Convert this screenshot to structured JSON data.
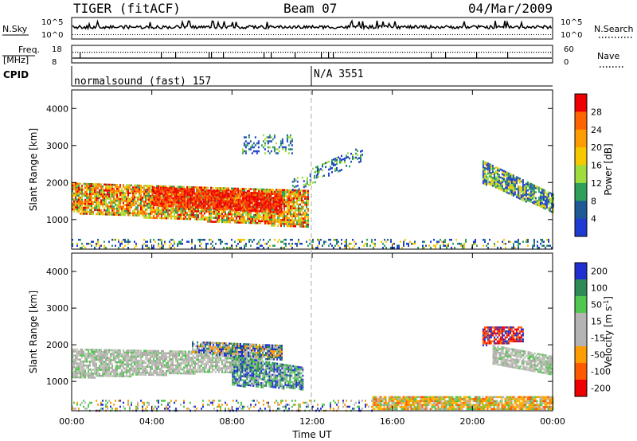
{
  "header": {
    "radar_label": "TIGER (fitACF)",
    "beam_label": "Beam 07",
    "date_label": "04/Mar/2009"
  },
  "strip": {
    "nsky_label": "N.Sky",
    "nsky_ticks": [
      "10^5",
      "10^0"
    ],
    "nsearch_label": "N.Search",
    "nsearch_ticks": [
      "10^5",
      "10^0"
    ],
    "freq_label_1": "Freq.",
    "freq_label_2": "[MHz]",
    "freq_ticks": [
      "18",
      "8"
    ],
    "nave_label": "Nave",
    "nave_ticks": [
      "60",
      "0"
    ],
    "cpid_label": "CPID",
    "cpid_mode_1": "normalsound (fast) 157",
    "cpid_mode_2": "N/A 3551"
  },
  "chart_data": [
    {
      "type": "heatmap",
      "parameter": "power",
      "ylabel": "Slant Range [km]",
      "xlabel": "",
      "ylim_km": [
        200,
        4500
      ],
      "xlim_hours": [
        0,
        24
      ],
      "x_ticks": [
        "00:00",
        "04:00",
        "08:00",
        "12:00",
        "16:00",
        "20:00",
        "00:00"
      ],
      "y_ticks": [
        "1000",
        "2000",
        "3000",
        "4000"
      ],
      "colorbar": {
        "label": "Power [dB]",
        "ticks": [
          "28",
          "24",
          "20",
          "16",
          "12",
          "8",
          "4"
        ],
        "colors": [
          "#ee0000",
          "#ff6400",
          "#ff9c00",
          "#f5c800",
          "#a0dc3c",
          "#2ea05a",
          "#1f5a96",
          "#1e3cd2"
        ]
      },
      "scatter_regions": [
        {
          "t0": 0.0,
          "t1": 11.8,
          "r0_start": 1200,
          "r1_start": 2000,
          "r0_end": 800,
          "r1_end": 1800,
          "level": "high"
        },
        {
          "t0": 4.0,
          "t1": 10.5,
          "r0_start": 1400,
          "r1_start": 1900,
          "r0_end": 1200,
          "r1_end": 1700,
          "level": "peak"
        },
        {
          "t0": 11.0,
          "t1": 12.3,
          "r0_start": 1800,
          "r1_start": 2100,
          "r0_end": 2000,
          "r1_end": 2400,
          "level": "low"
        },
        {
          "t0": 12.0,
          "t1": 14.5,
          "r0_start": 2000,
          "r1_start": 2400,
          "r0_end": 2600,
          "r1_end": 3000,
          "level": "low"
        },
        {
          "t0": 8.5,
          "t1": 11.0,
          "r0_start": 2800,
          "r1_start": 3300,
          "r0_end": 2800,
          "r1_end": 3300,
          "level": "low"
        },
        {
          "t0": 20.5,
          "t1": 24.0,
          "r0_start": 2000,
          "r1_start": 2600,
          "r0_end": 1200,
          "r1_end": 1700,
          "level": "mid"
        },
        {
          "t0": 0.0,
          "t1": 24.0,
          "r0_start": 220,
          "r1_start": 480,
          "r0_end": 220,
          "r1_end": 480,
          "level": "noise"
        }
      ]
    },
    {
      "type": "heatmap",
      "parameter": "velocity",
      "ylabel": "Slant Range [km]",
      "xlabel": "Time UT",
      "ylim_km": [
        200,
        4500
      ],
      "xlim_hours": [
        0,
        24
      ],
      "x_ticks": [
        "00:00",
        "04:00",
        "08:00",
        "12:00",
        "16:00",
        "20:00",
        "00:00"
      ],
      "y_ticks": [
        "1000",
        "2000",
        "3000",
        "4000"
      ],
      "colorbar": {
        "label": "Velocity [m s^-1]",
        "ticks": [
          "200",
          "100",
          "50",
          "15",
          "-15",
          "-50",
          "-100",
          "-200"
        ],
        "colors": [
          "#2030d0",
          "#2e8b57",
          "#50c850",
          "#b4b4b4",
          "#b4b4b4",
          "#ff9c00",
          "#ff5a00",
          "#ee0000"
        ]
      },
      "scatter_regions": [
        {
          "t0": 0.0,
          "t1": 9.5,
          "r0_start": 1100,
          "r1_start": 1900,
          "r0_end": 1300,
          "r1_end": 1800,
          "level": "gray"
        },
        {
          "t0": 8.0,
          "t1": 11.5,
          "r0_start": 900,
          "r1_start": 1700,
          "r0_end": 800,
          "r1_end": 1400,
          "level": "green"
        },
        {
          "t0": 6.0,
          "t1": 10.5,
          "r0_start": 1800,
          "r1_start": 2100,
          "r0_end": 1600,
          "r1_end": 2000,
          "level": "blue"
        },
        {
          "t0": 20.5,
          "t1": 22.5,
          "r0_start": 2000,
          "r1_start": 2500,
          "r0_end": 2100,
          "r1_end": 2500,
          "level": "red"
        },
        {
          "t0": 21.0,
          "t1": 24.0,
          "r0_start": 1500,
          "r1_start": 2000,
          "r0_end": 1200,
          "r1_end": 1700,
          "level": "gray"
        },
        {
          "t0": 15.0,
          "t1": 24.0,
          "r0_start": 220,
          "r1_start": 600,
          "r0_end": 220,
          "r1_end": 600,
          "level": "orange"
        },
        {
          "t0": 0.0,
          "t1": 15.0,
          "r0_start": 220,
          "r1_start": 500,
          "r0_end": 220,
          "r1_end": 500,
          "level": "sparse"
        }
      ]
    }
  ]
}
